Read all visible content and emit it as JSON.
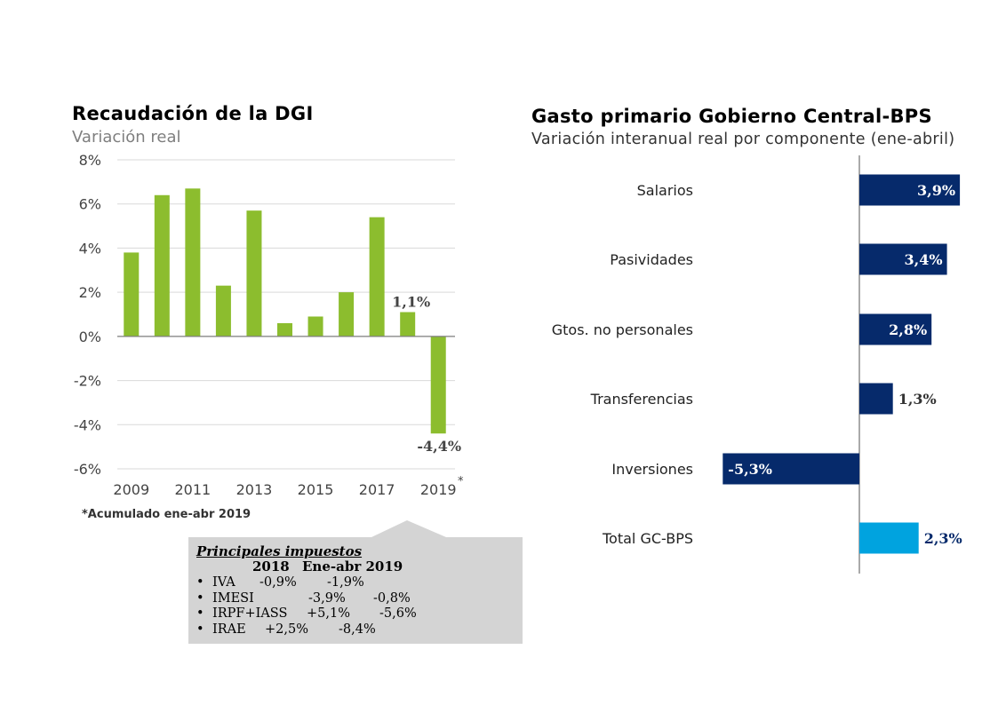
{
  "left_chart": {
    "title": "Recaudación de la DGI",
    "subtitle": "Variación real",
    "footnote": "*Acumulado ene-abr 2019",
    "asterisk": "*"
  },
  "right_chart": {
    "title": "Gasto primario Gobierno Central-BPS",
    "subtitle": "Variación interanual real por componente (ene-abril)"
  },
  "taxes_box": {
    "title": "Principales impuestos",
    "col_2018": "2018",
    "col_2019": "Ene-abr 2019",
    "bullet": "•",
    "rows": [
      {
        "name": "IVA",
        "v2018": "-0,9%",
        "v2019": "-1,9%"
      },
      {
        "name": "IMESI",
        "v2018": "-3,9%",
        "v2019": "-0,8%"
      },
      {
        "name": "IRPF+IASS",
        "v2018": "+5,1%",
        "v2019": "-5,6%"
      },
      {
        "name": "IRAE",
        "v2018": "+2,5%",
        "v2019": "-8,4%"
      }
    ]
  },
  "chart_data": [
    {
      "type": "bar",
      "title": "Recaudación de la DGI",
      "subtitle": "Variación real",
      "categories": [
        2009,
        2010,
        2011,
        2012,
        2013,
        2014,
        2015,
        2016,
        2017,
        2018,
        2019
      ],
      "x_tick_labels": [
        "2009",
        "2011",
        "2013",
        "2015",
        "2017",
        "2019"
      ],
      "values": [
        3.8,
        6.4,
        6.7,
        2.3,
        5.7,
        0.6,
        0.9,
        2.0,
        5.4,
        1.1,
        -4.4
      ],
      "y_tick_labels": [
        "8%",
        "6%",
        "4%",
        "2%",
        "0%",
        "-2%",
        "-4%",
        "-6%"
      ],
      "ylim": [
        -6,
        8
      ],
      "grid": true,
      "data_labels": [
        {
          "category": 2018,
          "text": "1,1%"
        },
        {
          "category": 2019,
          "text": "-4,4%"
        }
      ],
      "color": "#8cbd2e"
    },
    {
      "type": "bar",
      "orientation": "horizontal",
      "title": "Gasto primario Gobierno Central-BPS",
      "subtitle": "Variación interanual real por componente (ene-abril)",
      "categories": [
        "Salarios",
        "Pasividades",
        "Gtos. no personales",
        "Transferencias",
        "Inversiones",
        "Total GC-BPS"
      ],
      "values": [
        3.9,
        3.4,
        2.8,
        1.3,
        -5.3,
        2.3
      ],
      "labels": [
        "3,9%",
        "3,4%",
        "2,8%",
        "1,3%",
        "-5,3%",
        "2,3%"
      ],
      "colors": [
        "#062a6b",
        "#062a6b",
        "#062a6b",
        "#062a6b",
        "#062a6b",
        "#00a3df"
      ],
      "grid": false
    }
  ]
}
